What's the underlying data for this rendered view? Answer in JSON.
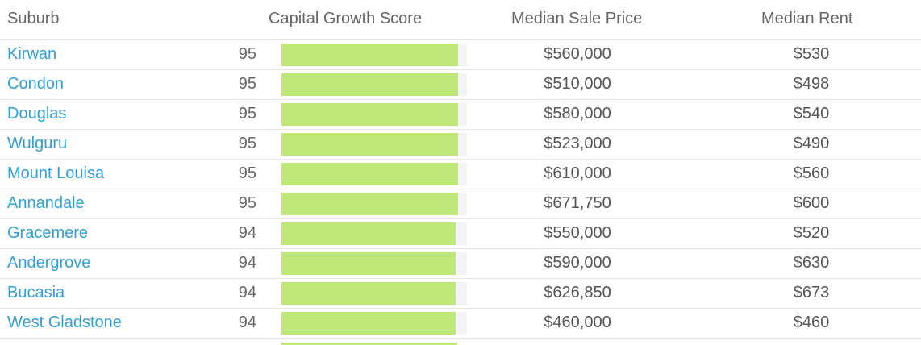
{
  "table": {
    "headers": {
      "suburb": "Suburb",
      "score": "Capital Growth Score",
      "price": "Median Sale Price",
      "rent": "Median Rent"
    },
    "rows": [
      {
        "suburb": "Kirwan",
        "score": "95",
        "score_pct": 0.95,
        "price": "$560,000",
        "rent": "$530"
      },
      {
        "suburb": "Condon",
        "score": "95",
        "score_pct": 0.95,
        "price": "$510,000",
        "rent": "$498"
      },
      {
        "suburb": "Douglas",
        "score": "95",
        "score_pct": 0.95,
        "price": "$580,000",
        "rent": "$540"
      },
      {
        "suburb": "Wulguru",
        "score": "95",
        "score_pct": 0.95,
        "price": "$523,000",
        "rent": "$490"
      },
      {
        "suburb": "Mount Louisa",
        "score": "95",
        "score_pct": 0.95,
        "price": "$610,000",
        "rent": "$560"
      },
      {
        "suburb": "Annandale",
        "score": "95",
        "score_pct": 0.95,
        "price": "$671,750",
        "rent": "$600"
      },
      {
        "suburb": "Gracemere",
        "score": "94",
        "score_pct": 0.94,
        "price": "$550,000",
        "rent": "$520"
      },
      {
        "suburb": "Andergrove",
        "score": "94",
        "score_pct": 0.94,
        "price": "$590,000",
        "rent": "$630"
      },
      {
        "suburb": "Bucasia",
        "score": "94",
        "score_pct": 0.94,
        "price": "$626,850",
        "rent": "$673"
      },
      {
        "suburb": "West Gladstone",
        "score": "94",
        "score_pct": 0.94,
        "price": "$460,000",
        "rent": "$460"
      }
    ]
  },
  "colors": {
    "link": "#2f9fd9",
    "bar_fill": "#bde877",
    "bar_track": "#f3f3f3"
  }
}
